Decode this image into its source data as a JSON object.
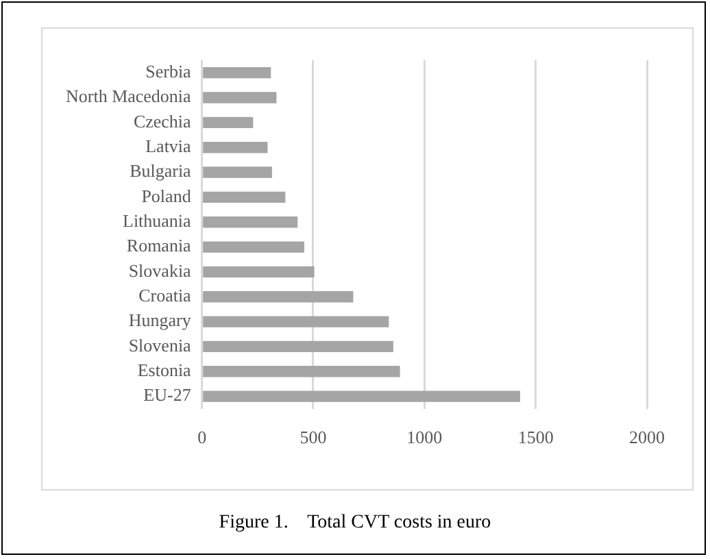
{
  "chart_data": {
    "type": "bar",
    "orientation": "horizontal",
    "categories": [
      "Serbia",
      "North Macedonia",
      "Czechia",
      "Latvia",
      "Bulgaria",
      "Poland",
      "Lithuania",
      "Romania",
      "Slovakia",
      "Croatia",
      "Hungary",
      "Slovenia",
      "Estonia",
      "EU-27"
    ],
    "values": [
      310,
      335,
      230,
      295,
      315,
      375,
      430,
      460,
      505,
      680,
      840,
      860,
      890,
      1430
    ],
    "color": "#a5a5a5",
    "xlim": [
      0,
      2000
    ],
    "xticks": [
      0,
      500,
      1000,
      1500,
      2000
    ],
    "grid": "x",
    "legend": false,
    "annotations": [
      "Figure 1.    Total CVT costs in euro"
    ]
  }
}
